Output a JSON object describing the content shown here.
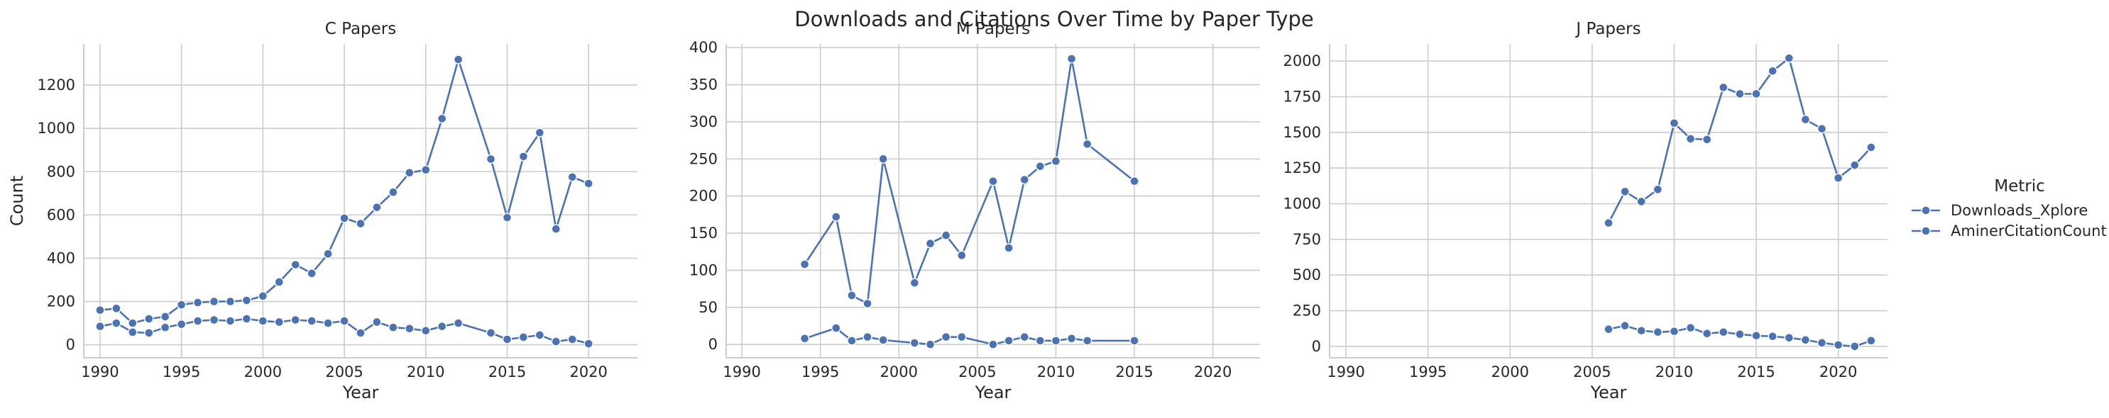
{
  "title": "Downloads and Citations Over Time by Paper Type",
  "legend": {
    "title": "Metric",
    "entries": [
      "Downloads_Xplore",
      "AminerCitationCount"
    ]
  },
  "colors": {
    "series": "#4c72b0"
  },
  "chart_data": [
    {
      "type": "line",
      "title": "C Papers",
      "xlabel": "Year",
      "ylabel": "Count",
      "xlim": [
        1989,
        2023
      ],
      "ylim": [
        -60,
        1390
      ],
      "xticks": [
        1990,
        1995,
        2000,
        2005,
        2010,
        2015,
        2020
      ],
      "yticks": [
        0,
        200,
        400,
        600,
        800,
        1000,
        1200
      ],
      "grid": true,
      "series": [
        {
          "name": "Downloads_Xplore",
          "x": [
            1990,
            1991,
            1992,
            1993,
            1994,
            1995,
            1996,
            1997,
            1998,
            1999,
            2000,
            2001,
            2002,
            2003,
            2004,
            2005,
            2006,
            2007,
            2008,
            2009,
            2010,
            2011,
            2012,
            2014,
            2015,
            2016,
            2017,
            2018,
            2019,
            2020
          ],
          "values": [
            160,
            168,
            100,
            120,
            130,
            185,
            195,
            200,
            200,
            205,
            225,
            290,
            370,
            330,
            420,
            585,
            560,
            635,
            705,
            795,
            808,
            1045,
            1318,
            858,
            588,
            870,
            980,
            535,
            775,
            745
          ]
        },
        {
          "name": "AminerCitationCount",
          "x": [
            1990,
            1991,
            1992,
            1993,
            1994,
            1995,
            1996,
            1997,
            1998,
            1999,
            2000,
            2001,
            2002,
            2003,
            2004,
            2005,
            2006,
            2007,
            2008,
            2009,
            2010,
            2011,
            2012,
            2014,
            2015,
            2016,
            2017,
            2018,
            2019,
            2020
          ],
          "values": [
            85,
            100,
            58,
            55,
            80,
            95,
            110,
            115,
            110,
            120,
            110,
            105,
            115,
            110,
            100,
            110,
            55,
            105,
            80,
            75,
            65,
            85,
            100,
            55,
            25,
            35,
            45,
            15,
            25,
            5
          ]
        }
      ]
    },
    {
      "type": "line",
      "title": "M Papers",
      "xlabel": "Year",
      "ylabel": "",
      "xlim": [
        1989,
        2023
      ],
      "ylim": [
        -18,
        405
      ],
      "xticks": [
        1990,
        1995,
        2000,
        2005,
        2010,
        2015,
        2020
      ],
      "yticks": [
        0,
        50,
        100,
        150,
        200,
        250,
        300,
        350,
        400
      ],
      "grid": true,
      "series": [
        {
          "name": "Downloads_Xplore",
          "x": [
            1994,
            1996,
            1997,
            1998,
            1999,
            2001,
            2002,
            2003,
            2004,
            2006,
            2007,
            2008,
            2009,
            2010,
            2011,
            2012,
            2015
          ],
          "values": [
            108,
            172,
            66,
            55,
            250,
            83,
            136,
            147,
            120,
            220,
            130,
            222,
            240,
            247,
            385,
            270,
            220
          ]
        },
        {
          "name": "AminerCitationCount",
          "x": [
            1994,
            1996,
            1997,
            1998,
            1999,
            2001,
            2002,
            2003,
            2004,
            2006,
            2007,
            2008,
            2009,
            2010,
            2011,
            2012,
            2015
          ],
          "values": [
            8,
            22,
            5,
            10,
            6,
            2,
            0,
            10,
            10,
            0,
            5,
            10,
            5,
            5,
            8,
            5,
            5
          ]
        }
      ]
    },
    {
      "type": "line",
      "title": "J Papers",
      "xlabel": "Year",
      "ylabel": "",
      "xlim": [
        1989,
        2023
      ],
      "ylim": [
        -80,
        2120
      ],
      "xticks": [
        1990,
        1995,
        2000,
        2005,
        2010,
        2015,
        2020
      ],
      "yticks": [
        0,
        250,
        500,
        750,
        1000,
        1250,
        1500,
        1750,
        2000
      ],
      "grid": true,
      "series": [
        {
          "name": "Downloads_Xplore",
          "x": [
            2006,
            2007,
            2008,
            2009,
            2010,
            2011,
            2012,
            2013,
            2014,
            2015,
            2016,
            2017,
            2018,
            2019,
            2020,
            2021,
            2022
          ],
          "values": [
            865,
            1085,
            1015,
            1100,
            1565,
            1455,
            1450,
            1815,
            1770,
            1770,
            1930,
            2020,
            1590,
            1525,
            1180,
            1270,
            1395
          ]
        },
        {
          "name": "AminerCitationCount",
          "x": [
            2006,
            2007,
            2008,
            2009,
            2010,
            2011,
            2012,
            2013,
            2014,
            2015,
            2016,
            2017,
            2018,
            2019,
            2020,
            2021,
            2022
          ],
          "values": [
            120,
            145,
            110,
            100,
            105,
            130,
            90,
            100,
            85,
            75,
            70,
            60,
            45,
            25,
            10,
            0,
            40
          ]
        }
      ]
    }
  ]
}
